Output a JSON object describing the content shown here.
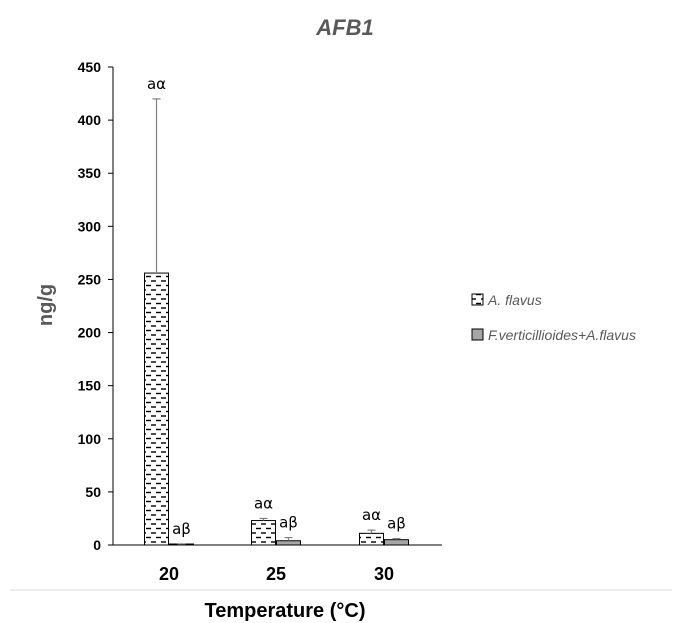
{
  "chart_data": {
    "type": "bar",
    "title": "AFB1",
    "xlabel": "Temperature (°C)",
    "ylabel": "ng/g",
    "categories": [
      "20",
      "25",
      "30"
    ],
    "ylim": [
      0,
      450
    ],
    "yticks": [
      0,
      50,
      100,
      150,
      200,
      250,
      300,
      350,
      400,
      450
    ],
    "series": [
      {
        "name": "A. flavus",
        "values": [
          256,
          23,
          11
        ],
        "error_upper": [
          420,
          25,
          14
        ],
        "labels": [
          "aα",
          "aα",
          "aα"
        ],
        "fill": "#ffffff",
        "pattern": "dashes"
      },
      {
        "name": "F.verticillioides+A.flavus",
        "values": [
          0.5,
          4,
          5
        ],
        "error_upper": [
          1,
          7,
          6
        ],
        "labels": [
          "aβ",
          "aβ",
          "aβ"
        ],
        "fill": "#a6a6a6",
        "pattern": "solid"
      }
    ],
    "grid": false,
    "legend_position": "right",
    "colors": {
      "axis": "#000000",
      "title": "#595959",
      "error_bar": "#7f7f7f",
      "separator": "#d9d9d9"
    }
  }
}
